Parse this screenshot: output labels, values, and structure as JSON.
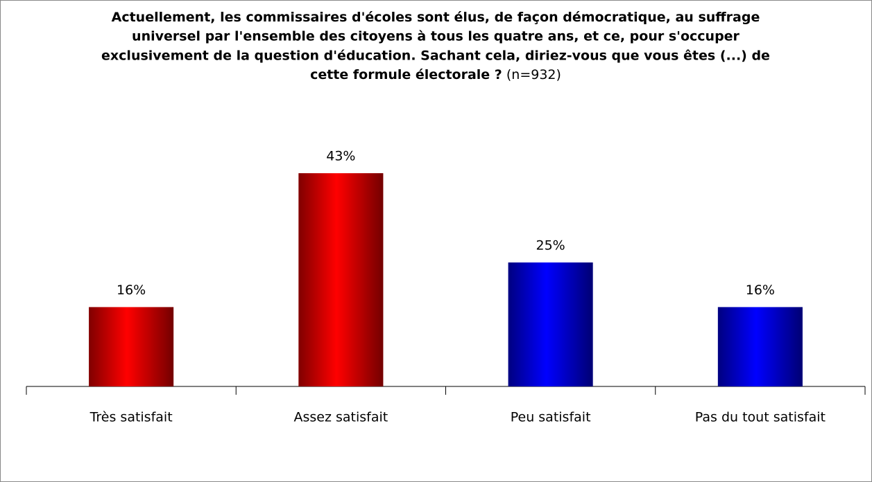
{
  "chart_data": {
    "type": "bar",
    "title": [
      "Actuellement, les commissaires d'écoles sont élus, de façon démocratique, au suffrage",
      "universel par l'ensemble des citoyens à tous les quatre ans, et ce, pour s'occuper",
      "exclusivement de la question d'éducation. Sachant cela, diriez-vous que vous êtes (...) de",
      "cette formule électorale ?"
    ],
    "sample": "(n=932)",
    "categories": [
      "Très satisfait",
      "Assez satisfait",
      "Peu satisfait",
      "Pas du tout satisfait"
    ],
    "values": [
      16,
      43,
      25,
      16
    ],
    "value_labels": [
      "16%",
      "43%",
      "25%",
      "16%"
    ],
    "colors": [
      "#ff0000",
      "#ff0000",
      "#0000ff",
      "#0000ff"
    ],
    "ylim": [
      0,
      50
    ]
  }
}
